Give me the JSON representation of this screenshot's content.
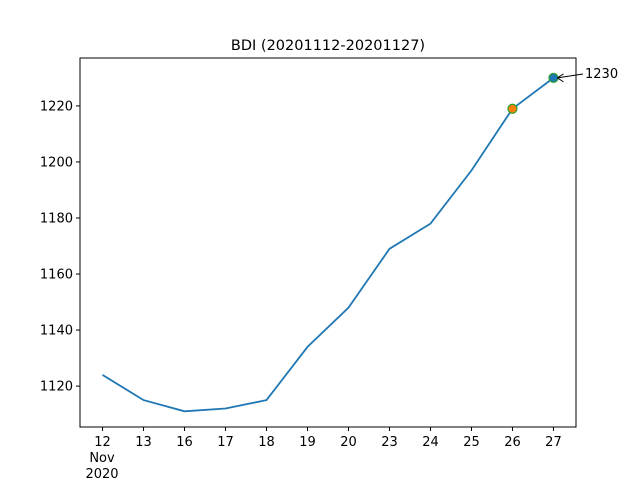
{
  "chart_data": {
    "type": "line",
    "title": "BDI (20201112-20201127)",
    "xlabel": "",
    "ylabel": "",
    "categories": [
      "12",
      "13",
      "16",
      "17",
      "18",
      "19",
      "20",
      "23",
      "24",
      "25",
      "26",
      "27"
    ],
    "x_sublabel": [
      "Nov",
      "2020"
    ],
    "values": [
      1124,
      1115,
      1111,
      1112,
      1115,
      1134,
      1148,
      1169,
      1178,
      1197,
      1219,
      1230
    ],
    "ylim": [
      1105.4,
      1237.1
    ],
    "yticks": [
      1120,
      1140,
      1160,
      1180,
      1200,
      1220
    ],
    "grid": false,
    "line_color": "#1f77b4",
    "markers": [
      {
        "category": "26",
        "value": 1219,
        "fill": "#ff7f0e",
        "edge": "#2ca02c"
      },
      {
        "category": "27",
        "value": 1230,
        "fill": "#1f77b4",
        "edge": "#2ca02c"
      }
    ],
    "annotation": {
      "text": "1230",
      "category": "27",
      "value": 1230
    }
  }
}
